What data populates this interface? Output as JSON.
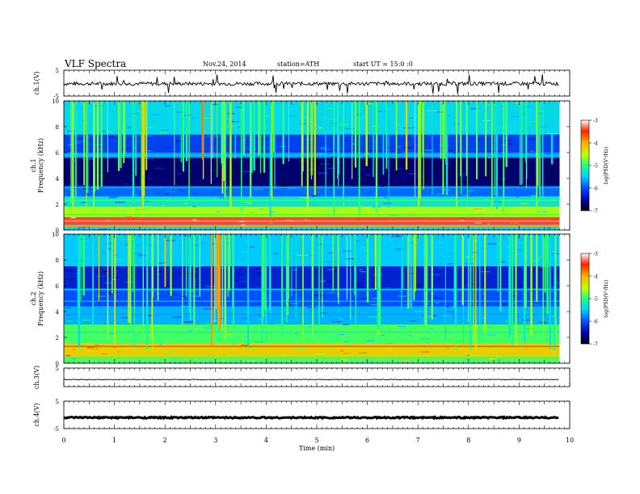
{
  "header": {
    "title": "VLF Spectra",
    "date": "Nov.24, 2014",
    "station": "station=ATH",
    "start": "start UT = 15:0 :0"
  },
  "chart_data": [
    {
      "type": "line",
      "panel": "ch1-waveform",
      "ylabel": "ch.1(V)",
      "ylim": [
        -5,
        5
      ],
      "y_ticks": [
        "5",
        "-5"
      ],
      "xlim": [
        0,
        10
      ],
      "series": [
        {
          "name": "",
          "description_level": -0.2
        }
      ]
    },
    {
      "type": "heatmap",
      "panel": "ch1-spectrogram",
      "ylabel": "ch.1\nFrequency (kHz)",
      "ylim": [
        0,
        10
      ],
      "y_ticks": [
        "0",
        "2",
        "4",
        "6",
        "8",
        "10"
      ],
      "xlim": [
        0,
        9.8
      ],
      "colorbar": {
        "label": "log(PSD(V²/Hz)",
        "range": [
          -7,
          -3
        ],
        "ticks": [
          "-3",
          "-4",
          "-5",
          "-6",
          "-7"
        ],
        "colormap": "jet"
      },
      "bands": [
        {
          "f": [
            0.0,
            0.4
          ],
          "v": -5.4
        },
        {
          "f": [
            0.4,
            1.0
          ],
          "v": -3.4
        },
        {
          "f": [
            1.0,
            1.8
          ],
          "v": -4.6
        },
        {
          "f": [
            1.8,
            2.6
          ],
          "v": -5.3
        },
        {
          "f": [
            2.6,
            3.4
          ],
          "v": -5.9
        },
        {
          "f": [
            3.4,
            5.6
          ],
          "v": -6.7
        },
        {
          "f": [
            5.6,
            6.0
          ],
          "v": -5.7
        },
        {
          "f": [
            6.0,
            7.4
          ],
          "v": -6.1
        },
        {
          "f": [
            7.4,
            10.0
          ],
          "v": -5.4
        }
      ],
      "lines": [
        {
          "f": 0.3,
          "v": -4.0
        },
        {
          "f": 0.7,
          "v": -3.2
        },
        {
          "f": 1.2,
          "v": -5.0
        },
        {
          "f": 2.3,
          "v": -4.9
        },
        {
          "f": 5.8,
          "v": -5.5
        },
        {
          "f": 3.3,
          "v": -5.6
        }
      ],
      "spikes": [
        {
          "t": 0.35,
          "v": -5.0
        },
        {
          "t": 0.8,
          "v": -4.7
        },
        {
          "t": 1.3,
          "v": -4.9
        },
        {
          "t": 1.75,
          "v": -4.6
        },
        {
          "t": 2.3,
          "v": -5.0
        },
        {
          "t": 2.95,
          "v": -4.2
        },
        {
          "t": 3.2,
          "v": -4.8
        },
        {
          "t": 3.55,
          "v": -5.1
        },
        {
          "t": 3.9,
          "v": -4.9
        },
        {
          "t": 4.3,
          "v": -5.0
        },
        {
          "t": 4.85,
          "v": -4.7
        },
        {
          "t": 5.35,
          "v": -5.0
        },
        {
          "t": 5.9,
          "v": -4.8
        },
        {
          "t": 6.4,
          "v": -5.1
        },
        {
          "t": 6.9,
          "v": -4.6
        },
        {
          "t": 7.4,
          "v": -5.0
        },
        {
          "t": 7.95,
          "v": -4.8
        },
        {
          "t": 8.5,
          "v": -5.0
        },
        {
          "t": 8.95,
          "v": -4.9
        },
        {
          "t": 9.5,
          "v": -5.1
        }
      ]
    },
    {
      "type": "heatmap",
      "panel": "ch2-spectrogram",
      "ylabel": "ch.2\nFrequency (kHz)",
      "ylim": [
        0,
        10
      ],
      "y_ticks": [
        "0",
        "2",
        "4",
        "6",
        "8",
        "10"
      ],
      "xlim": [
        0,
        9.8
      ],
      "colorbar": {
        "label": "log(PSD(V²/Hz)",
        "range": [
          -7,
          -3
        ],
        "ticks": [
          "-3",
          "-4",
          "-5",
          "-6",
          "-7"
        ],
        "colormap": "jet"
      },
      "bands": [
        {
          "f": [
            0.0,
            0.5
          ],
          "v": -4.9
        },
        {
          "f": [
            0.5,
            1.5
          ],
          "v": -4.2
        },
        {
          "f": [
            1.5,
            3.0
          ],
          "v": -4.9
        },
        {
          "f": [
            3.0,
            4.4
          ],
          "v": -5.6
        },
        {
          "f": [
            4.4,
            5.8
          ],
          "v": -6.0
        },
        {
          "f": [
            5.8,
            7.5
          ],
          "v": -6.3
        },
        {
          "f": [
            7.5,
            10.0
          ],
          "v": -5.5
        }
      ],
      "lines": [
        {
          "f": 0.4,
          "v": -4.0
        },
        {
          "f": 1.3,
          "v": -3.6
        },
        {
          "f": 2.4,
          "v": -5.2
        },
        {
          "f": 4.8,
          "v": -5.6
        },
        {
          "f": 5.7,
          "v": -5.4
        },
        {
          "f": 3.8,
          "v": -5.7
        }
      ],
      "spikes": [
        {
          "t": 0.4,
          "v": -5.0
        },
        {
          "t": 0.9,
          "v": -4.7
        },
        {
          "t": 1.45,
          "v": -4.9
        },
        {
          "t": 1.95,
          "v": -4.6
        },
        {
          "t": 2.5,
          "v": -5.0
        },
        {
          "t": 3.05,
          "v": -4.3
        },
        {
          "t": 3.3,
          "v": -4.8
        },
        {
          "t": 3.75,
          "v": -5.1
        },
        {
          "t": 4.15,
          "v": -4.9
        },
        {
          "t": 4.6,
          "v": -5.0
        },
        {
          "t": 5.1,
          "v": -4.7
        },
        {
          "t": 5.6,
          "v": -5.0
        },
        {
          "t": 6.15,
          "v": -4.8
        },
        {
          "t": 6.7,
          "v": -5.1
        },
        {
          "t": 7.15,
          "v": -4.6
        },
        {
          "t": 7.7,
          "v": -5.0
        },
        {
          "t": 8.2,
          "v": -4.8
        },
        {
          "t": 8.75,
          "v": -5.0
        },
        {
          "t": 9.2,
          "v": -4.9
        },
        {
          "t": 9.6,
          "v": -5.1
        }
      ]
    },
    {
      "type": "line",
      "panel": "ch3-waveform",
      "ylabel": "ch.3(V)",
      "ylim": [
        -5,
        5
      ],
      "y_ticks": [
        "5"
      ],
      "xlim": [
        0,
        10
      ],
      "series": [
        {
          "name": "",
          "description_level": -1.2
        }
      ]
    },
    {
      "type": "line",
      "panel": "ch4-waveform",
      "ylabel": "ch.4(V)",
      "ylim": [
        -5,
        5
      ],
      "y_ticks": [
        "5",
        "-5"
      ],
      "xlim": [
        0,
        10
      ],
      "xlabel": "Time (min)",
      "x_ticks": [
        "0",
        "1",
        "2",
        "3",
        "4",
        "5",
        "6",
        "7",
        "8",
        "9",
        "10"
      ],
      "series": [
        {
          "name": "",
          "description_level": -1.0
        }
      ]
    }
  ]
}
